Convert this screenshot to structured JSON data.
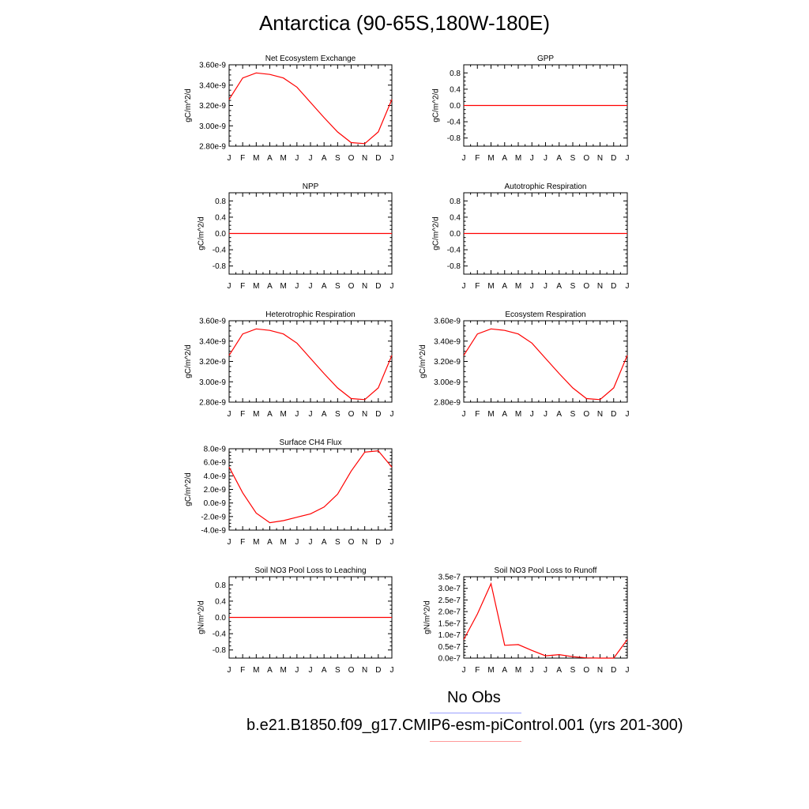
{
  "title": "Antarctica (90-65S,180W-180E)",
  "legend": {
    "obs_label": "No Obs",
    "obs_color": "#0000ff",
    "model_label": "b.e21.B1850.f09_g17.CMIP6-esm-piControl.001 (yrs 201-300)",
    "model_color": "#ff0000"
  },
  "chart_data": [
    {
      "type": "line",
      "title": "Net Ecosystem Exchange",
      "ylabel": "gC/m^2/d",
      "x": [
        "J",
        "F",
        "M",
        "A",
        "M",
        "J",
        "J",
        "A",
        "S",
        "O",
        "N",
        "D",
        "J"
      ],
      "values": [
        3.26e-09,
        3.47e-09,
        3.52e-09,
        3.505e-09,
        3.47e-09,
        3.38e-09,
        3.23e-09,
        3.08e-09,
        2.94e-09,
        2.835e-09,
        2.825e-09,
        2.94e-09,
        3.26e-09
      ],
      "ylim": [
        2.8e-09,
        3.6e-09
      ],
      "yticks": [
        2.8e-09,
        3e-09,
        3.2e-09,
        3.4e-09,
        3.6e-09
      ],
      "yticklabels": [
        "2.80e-9",
        "3.00e-9",
        "3.20e-9",
        "3.40e-9",
        "3.60e-9"
      ]
    },
    {
      "type": "line",
      "title": "GPP",
      "ylabel": "gC/m^2/d",
      "x": [
        "J",
        "F",
        "M",
        "A",
        "M",
        "J",
        "J",
        "A",
        "S",
        "O",
        "N",
        "D",
        "J"
      ],
      "values": [
        0,
        0,
        0,
        0,
        0,
        0,
        0,
        0,
        0,
        0,
        0,
        0,
        0
      ],
      "ylim": [
        -1,
        1
      ],
      "yticks": [
        -0.8,
        -0.4,
        0.0,
        0.4,
        0.8
      ],
      "yticklabels": [
        "-0.8",
        "-0.4",
        "0.0",
        "0.4",
        "0.8"
      ]
    },
    {
      "type": "line",
      "title": "NPP",
      "ylabel": "gC/m^2/d",
      "x": [
        "J",
        "F",
        "M",
        "A",
        "M",
        "J",
        "J",
        "A",
        "S",
        "O",
        "N",
        "D",
        "J"
      ],
      "values": [
        0,
        0,
        0,
        0,
        0,
        0,
        0,
        0,
        0,
        0,
        0,
        0,
        0
      ],
      "ylim": [
        -1,
        1
      ],
      "yticks": [
        -0.8,
        -0.4,
        0.0,
        0.4,
        0.8
      ],
      "yticklabels": [
        "-0.8",
        "-0.4",
        "0.0",
        "0.4",
        "0.8"
      ]
    },
    {
      "type": "line",
      "title": "Autotrophic Respiration",
      "ylabel": "gC/m^2/d",
      "x": [
        "J",
        "F",
        "M",
        "A",
        "M",
        "J",
        "J",
        "A",
        "S",
        "O",
        "N",
        "D",
        "J"
      ],
      "values": [
        0,
        0,
        0,
        0,
        0,
        0,
        0,
        0,
        0,
        0,
        0,
        0,
        0
      ],
      "ylim": [
        -1,
        1
      ],
      "yticks": [
        -0.8,
        -0.4,
        0.0,
        0.4,
        0.8
      ],
      "yticklabels": [
        "-0.8",
        "-0.4",
        "0.0",
        "0.4",
        "0.8"
      ]
    },
    {
      "type": "line",
      "title": "Heterotrophic Respiration",
      "ylabel": "gC/m^2/d",
      "x": [
        "J",
        "F",
        "M",
        "A",
        "M",
        "J",
        "J",
        "A",
        "S",
        "O",
        "N",
        "D",
        "J"
      ],
      "values": [
        3.26e-09,
        3.47e-09,
        3.52e-09,
        3.505e-09,
        3.47e-09,
        3.38e-09,
        3.23e-09,
        3.08e-09,
        2.94e-09,
        2.835e-09,
        2.825e-09,
        2.94e-09,
        3.26e-09
      ],
      "ylim": [
        2.8e-09,
        3.6e-09
      ],
      "yticks": [
        2.8e-09,
        3e-09,
        3.2e-09,
        3.4e-09,
        3.6e-09
      ],
      "yticklabels": [
        "2.80e-9",
        "3.00e-9",
        "3.20e-9",
        "3.40e-9",
        "3.60e-9"
      ]
    },
    {
      "type": "line",
      "title": "Ecosystem Respiration",
      "ylabel": "gC/m^2/d",
      "x": [
        "J",
        "F",
        "M",
        "A",
        "M",
        "J",
        "J",
        "A",
        "S",
        "O",
        "N",
        "D",
        "J"
      ],
      "values": [
        3.26e-09,
        3.47e-09,
        3.52e-09,
        3.505e-09,
        3.47e-09,
        3.38e-09,
        3.23e-09,
        3.08e-09,
        2.94e-09,
        2.835e-09,
        2.825e-09,
        2.94e-09,
        3.26e-09
      ],
      "ylim": [
        2.8e-09,
        3.6e-09
      ],
      "yticks": [
        2.8e-09,
        3e-09,
        3.2e-09,
        3.4e-09,
        3.6e-09
      ],
      "yticklabels": [
        "2.80e-9",
        "3.00e-9",
        "3.20e-9",
        "3.40e-9",
        "3.60e-9"
      ]
    },
    {
      "type": "line",
      "title": "Surface CH4 Flux",
      "ylabel": "gC/m^2/d",
      "x": [
        "J",
        "F",
        "M",
        "A",
        "M",
        "J",
        "J",
        "A",
        "S",
        "O",
        "N",
        "D",
        "J"
      ],
      "values": [
        5.3e-09,
        1.5e-09,
        -1.5e-09,
        -2.9e-09,
        -2.6e-09,
        -2.1e-09,
        -1.6e-09,
        -6e-10,
        1.3e-09,
        4.7e-09,
        7.5e-09,
        7.7e-09,
        5.3e-09
      ],
      "ylim": [
        -4e-09,
        8e-09
      ],
      "yticks": [
        -4e-09,
        -2e-09,
        0,
        2e-09,
        4e-09,
        6e-09,
        8e-09
      ],
      "yticklabels": [
        "-4.0e-9",
        "-2.0e-9",
        "0.0e-9",
        "2.0e-9",
        "4.0e-9",
        "6.0e-9",
        "8.0e-9"
      ]
    },
    {
      "type": "line",
      "title": "Soil NO3 Pool Loss to Leaching",
      "ylabel": "gN/m^2/d",
      "x": [
        "J",
        "F",
        "M",
        "A",
        "M",
        "J",
        "J",
        "A",
        "S",
        "O",
        "N",
        "D",
        "J"
      ],
      "values": [
        0,
        0,
        0,
        0,
        0,
        0,
        0,
        0,
        0,
        0,
        0,
        0,
        0
      ],
      "ylim": [
        -1,
        1
      ],
      "yticks": [
        -0.8,
        -0.4,
        0.0,
        0.4,
        0.8
      ],
      "yticklabels": [
        "-0.8",
        "-0.4",
        "0.0",
        "0.4",
        "0.8"
      ]
    },
    {
      "type": "line",
      "title": "Soil NO3 Pool Loss to Runoff",
      "ylabel": "gN/m^2/d",
      "x": [
        "J",
        "F",
        "M",
        "A",
        "M",
        "J",
        "J",
        "A",
        "S",
        "O",
        "N",
        "D",
        "J"
      ],
      "values": [
        8e-08,
        1.9e-07,
        3.2e-07,
        5.5e-08,
        5.8e-08,
        3.3e-08,
        1e-08,
        1.5e-08,
        6e-09,
        1e-09,
        0.0,
        0.0,
        8e-08
      ],
      "ylim": [
        0,
        3.5e-07
      ],
      "yticks": [
        0,
        5e-08,
        1e-07,
        1.5e-07,
        2e-07,
        2.5e-07,
        3e-07,
        3.5e-07
      ],
      "yticklabels": [
        "0.0e-7",
        "0.5e-7",
        "1.0e-7",
        "1.5e-7",
        "2.0e-7",
        "2.5e-7",
        "3.0e-7",
        "3.5e-7"
      ]
    }
  ]
}
